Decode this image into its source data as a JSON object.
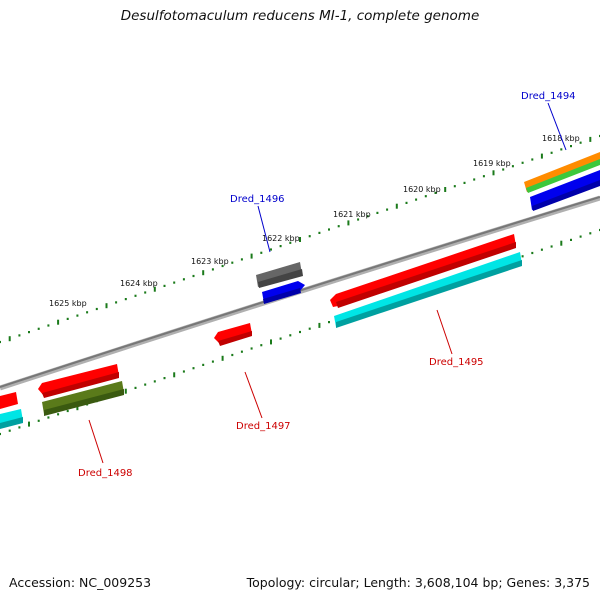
{
  "title": "Desulfotomaculum reducens MI-1, complete genome",
  "footer": {
    "accession": "Accession: NC_009253",
    "summary": "Topology: circular; Length: 3,608,104 bp; Genes: 3,375"
  },
  "tick_labels": [
    "1625 kbp",
    "1624 kbp",
    "1623 kbp",
    "1622 kbp",
    "1621 kbp",
    "1620 kbp",
    "1619 kbp",
    "1618 kbp"
  ],
  "gene_labels": {
    "dred_1494": "Dred_1494",
    "dred_1496": "Dred_1496",
    "dred_1495": "Dred_1495",
    "dred_1497": "Dred_1497",
    "dred_1498": "Dred_1498"
  },
  "colors": {
    "backbone": "#8a8a8a",
    "tick": "#1a7a1a",
    "label_forward": "#0000cc",
    "label_reverse": "#cc0000",
    "red": "#ff0000",
    "cyan": "#00e5e5",
    "blue": "#0000ee",
    "gray": "#666666",
    "olive": "#5a7a1a",
    "orange": "#ff8c00",
    "green": "#3cc83c"
  }
}
